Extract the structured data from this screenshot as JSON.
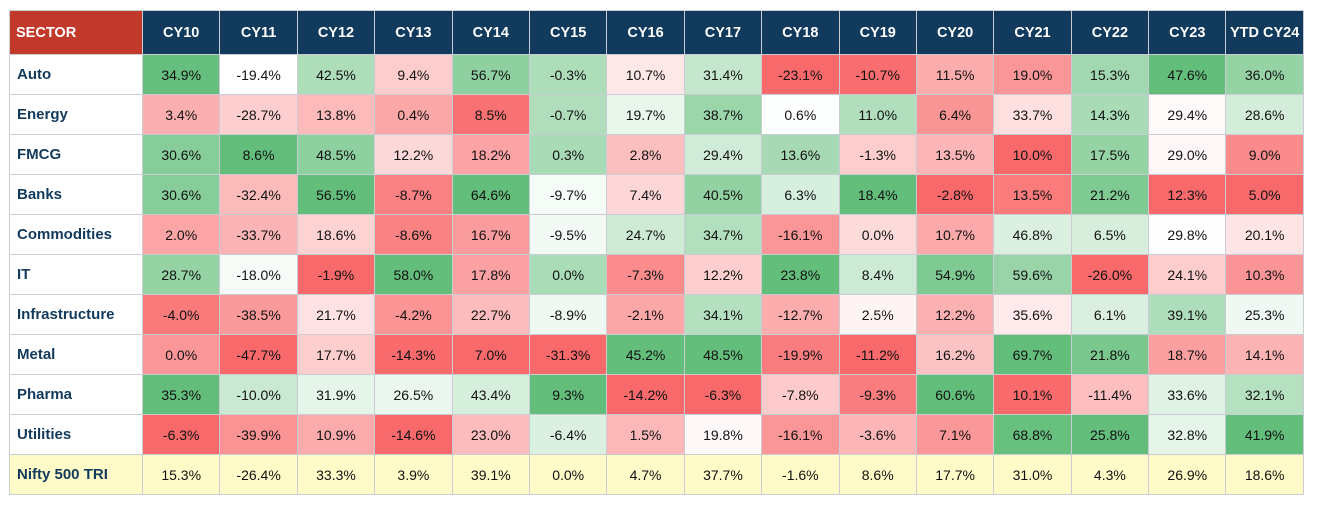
{
  "chart_data": {
    "type": "table",
    "header_label": "SECTOR",
    "columns": [
      "CY10",
      "CY11",
      "CY12",
      "CY13",
      "CY14",
      "CY15",
      "CY16",
      "CY17",
      "CY18",
      "CY19",
      "CY20",
      "CY21",
      "CY22",
      "CY23",
      "YTD CY24"
    ],
    "rows": [
      {
        "name": "Auto",
        "values": [
          "34.9%",
          "-19.4%",
          "42.5%",
          "9.4%",
          "56.7%",
          "-0.3%",
          "10.7%",
          "31.4%",
          "-23.1%",
          "-10.7%",
          "11.5%",
          "19.0%",
          "15.3%",
          "47.6%",
          "36.0%"
        ]
      },
      {
        "name": "Energy",
        "values": [
          "3.4%",
          "-28.7%",
          "13.8%",
          "0.4%",
          "8.5%",
          "-0.7%",
          "19.7%",
          "38.7%",
          "0.6%",
          "11.0%",
          "6.4%",
          "33.7%",
          "14.3%",
          "29.4%",
          "28.6%"
        ]
      },
      {
        "name": "FMCG",
        "values": [
          "30.6%",
          "8.6%",
          "48.5%",
          "12.2%",
          "18.2%",
          "0.3%",
          "2.8%",
          "29.4%",
          "13.6%",
          "-1.3%",
          "13.5%",
          "10.0%",
          "17.5%",
          "29.0%",
          "9.0%"
        ]
      },
      {
        "name": "Banks",
        "values": [
          "30.6%",
          "-32.4%",
          "56.5%",
          "-8.7%",
          "64.6%",
          "-9.7%",
          "7.4%",
          "40.5%",
          "6.3%",
          "18.4%",
          "-2.8%",
          "13.5%",
          "21.2%",
          "12.3%",
          "5.0%"
        ]
      },
      {
        "name": "Commodities",
        "values": [
          "2.0%",
          "-33.7%",
          "18.6%",
          "-8.6%",
          "16.7%",
          "-9.5%",
          "24.7%",
          "34.7%",
          "-16.1%",
          "0.0%",
          "10.7%",
          "46.8%",
          "6.5%",
          "29.8%",
          "20.1%"
        ]
      },
      {
        "name": "IT",
        "values": [
          "28.7%",
          "-18.0%",
          "-1.9%",
          "58.0%",
          "17.8%",
          "0.0%",
          "-7.3%",
          "12.2%",
          "23.8%",
          "8.4%",
          "54.9%",
          "59.6%",
          "-26.0%",
          "24.1%",
          "10.3%"
        ]
      },
      {
        "name": "Infrastructure",
        "values": [
          "-4.0%",
          "-38.5%",
          "21.7%",
          "-4.2%",
          "22.7%",
          "-8.9%",
          "-2.1%",
          "34.1%",
          "-12.7%",
          "2.5%",
          "12.2%",
          "35.6%",
          "6.1%",
          "39.1%",
          "25.3%"
        ]
      },
      {
        "name": "Metal",
        "values": [
          "0.0%",
          "-47.7%",
          "17.7%",
          "-14.3%",
          "7.0%",
          "-31.3%",
          "45.2%",
          "48.5%",
          "-19.9%",
          "-11.2%",
          "16.2%",
          "69.7%",
          "21.8%",
          "18.7%",
          "14.1%"
        ]
      },
      {
        "name": "Pharma",
        "values": [
          "35.3%",
          "-10.0%",
          "31.9%",
          "26.5%",
          "43.4%",
          "9.3%",
          "-14.2%",
          "-6.3%",
          "-7.8%",
          "-9.3%",
          "60.6%",
          "10.1%",
          "-11.4%",
          "33.6%",
          "32.1%"
        ]
      },
      {
        "name": "Utilities",
        "values": [
          "-6.3%",
          "-39.9%",
          "10.9%",
          "-14.6%",
          "23.0%",
          "-6.4%",
          "1.5%",
          "19.8%",
          "-16.1%",
          "-3.6%",
          "7.1%",
          "68.8%",
          "25.8%",
          "32.8%",
          "41.9%"
        ]
      }
    ],
    "total_row": {
      "name": "Nifty 500 TRI",
      "values": [
        "15.3%",
        "-26.4%",
        "33.3%",
        "3.9%",
        "39.1%",
        "0.0%",
        "4.7%",
        "37.7%",
        "-1.6%",
        "8.6%",
        "17.7%",
        "31.0%",
        "4.3%",
        "26.9%",
        "18.6%"
      ]
    },
    "colors": {
      "header_bg": "#123a5c",
      "sector_header_bg": "#c0392b",
      "sector_text": "#123a5c",
      "high": "#63be7b",
      "mid": "#ffffff",
      "low": "#f8696b",
      "total_bg": "#fffbc8"
    },
    "color_scale": "per-column green (highest) to white to red (lowest)"
  }
}
